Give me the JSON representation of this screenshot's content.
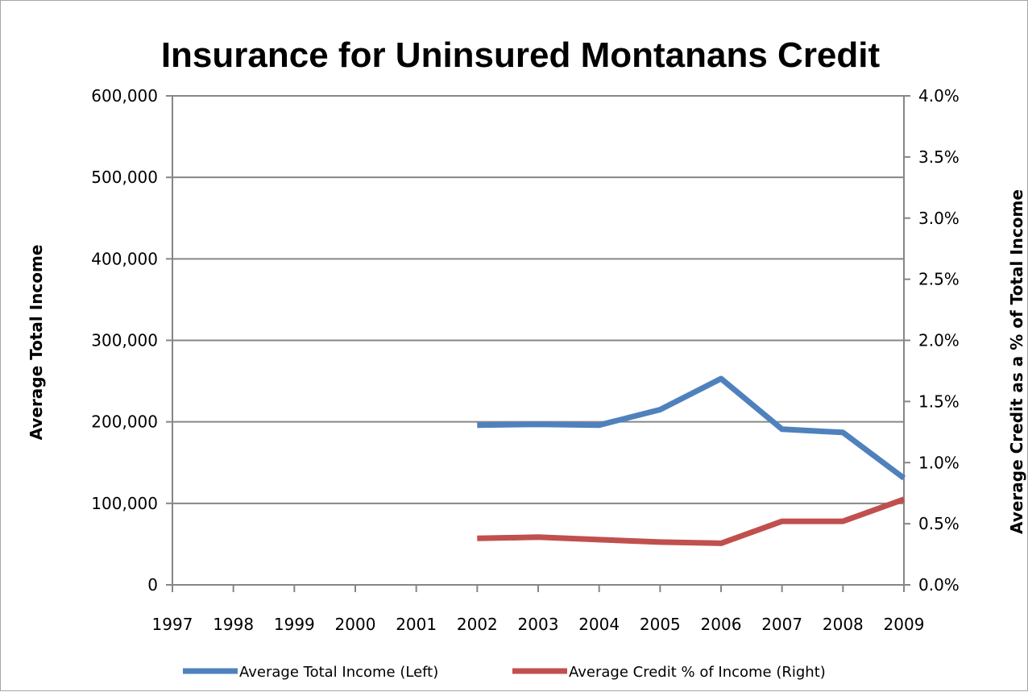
{
  "chart_data": {
    "type": "line",
    "title": "Insurance for Uninsured Montanans Credit",
    "ylabel_left": "Average Total  Income",
    "ylabel_right": "Average Credit as a % of Total Income",
    "categories": [
      "1997",
      "1998",
      "1999",
      "2000",
      "2001",
      "2002",
      "2003",
      "2004",
      "2005",
      "2006",
      "2007",
      "2008",
      "2009"
    ],
    "y_left": {
      "lim": [
        0,
        600000
      ],
      "ticks": [
        0,
        100000,
        200000,
        300000,
        400000,
        500000,
        600000
      ],
      "tick_labels": [
        "0",
        "100,000",
        "200,000",
        "300,000",
        "400,000",
        "500,000",
        "600,000"
      ]
    },
    "y_right": {
      "lim": [
        0,
        4.0
      ],
      "ticks": [
        0,
        0.5,
        1.0,
        1.5,
        2.0,
        2.5,
        3.0,
        3.5,
        4.0
      ],
      "tick_labels": [
        "0.0%",
        "0.5%",
        "1.0%",
        "1.5%",
        "2.0%",
        "2.5%",
        "3.0%",
        "3.5%",
        "4.0%"
      ]
    },
    "grid": true,
    "legend_position": "bottom",
    "series": [
      {
        "name": "Average Total Income (Left)",
        "axis": "left",
        "color": "#4f81bd",
        "values": [
          null,
          null,
          null,
          null,
          null,
          196000,
          197000,
          196000,
          215000,
          253000,
          191000,
          187000,
          131000
        ]
      },
      {
        "name": "Average Credit % of Income (Right)",
        "axis": "right",
        "color": "#c0504d",
        "values": [
          null,
          null,
          null,
          null,
          null,
          0.38,
          0.39,
          0.37,
          0.35,
          0.34,
          0.52,
          0.52,
          0.7
        ]
      }
    ]
  }
}
